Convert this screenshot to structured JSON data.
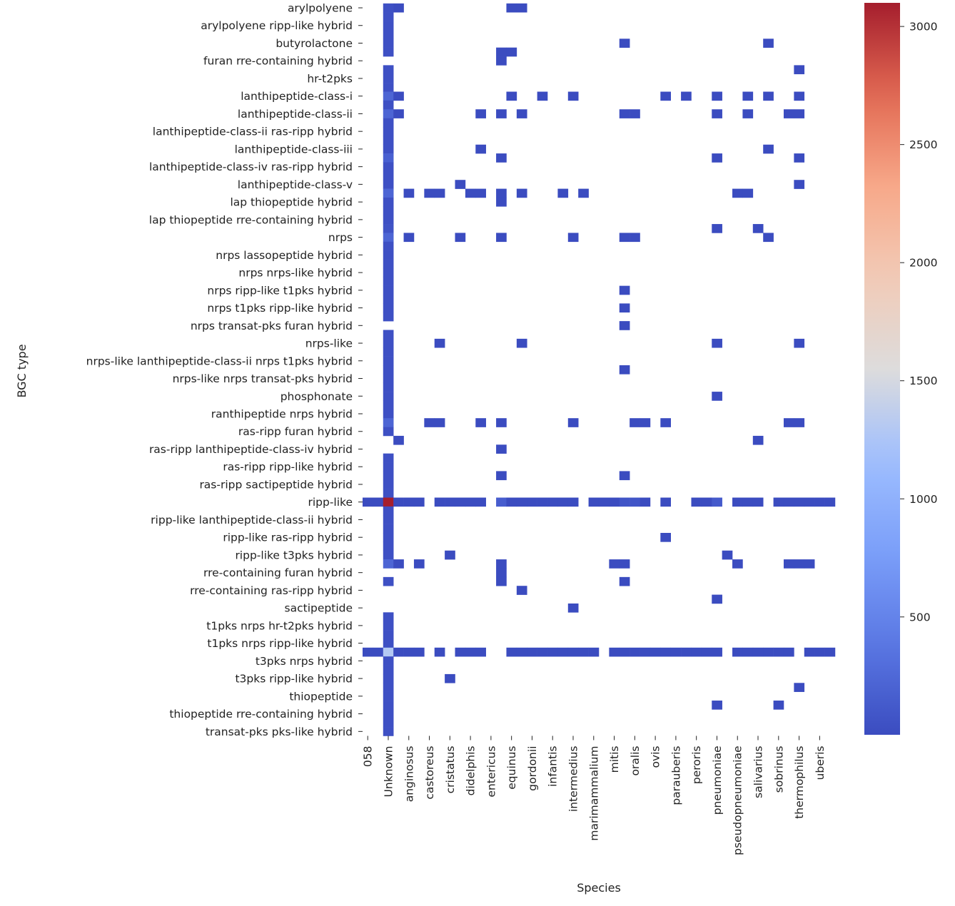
{
  "chart_data": {
    "type": "heatmap",
    "xlabel": "Species",
    "ylabel": "BGC type",
    "colormap": "coolwarm",
    "color_range": [
      1,
      3100
    ],
    "colorbar_ticks": [
      500,
      1000,
      1500,
      2000,
      2500,
      3000
    ],
    "empty_cell_color": "#ffffff",
    "row_labels": [
      "arylpolyene",
      "",
      "arylpolyene ripp-like hybrid",
      "",
      "butyrolactone",
      "",
      "furan rre-containing hybrid",
      "",
      "hr-t2pks",
      "",
      "lanthipeptide-class-i",
      "",
      "lanthipeptide-class-ii",
      "",
      "lanthipeptide-class-ii ras-ripp hybrid",
      "",
      "lanthipeptide-class-iii",
      "",
      "lanthipeptide-class-iv ras-ripp hybrid",
      "",
      "lanthipeptide-class-v",
      "",
      "lap thiopeptide hybrid",
      "",
      "lap thiopeptide rre-containing hybrid",
      "",
      "nrps",
      "",
      "nrps lassopeptide hybrid",
      "",
      "nrps nrps-like hybrid",
      "",
      "nrps ripp-like t1pks hybrid",
      "",
      "nrps t1pks ripp-like hybrid",
      "",
      "nrps transat-pks furan hybrid",
      "",
      "nrps-like",
      "",
      "nrps-like lanthipeptide-class-ii nrps t1pks hybrid",
      "",
      "nrps-like nrps transat-pks hybrid",
      "",
      "phosphonate",
      "",
      "ranthipeptide nrps hybrid",
      "",
      "ras-ripp furan hybrid",
      "",
      "ras-ripp lanthipeptide-class-iv hybrid",
      "",
      "ras-ripp ripp-like hybrid",
      "",
      "ras-ripp sactipeptide hybrid",
      "",
      "ripp-like",
      "",
      "ripp-like lanthipeptide-class-ii hybrid",
      "",
      "ripp-like ras-ripp hybrid",
      "",
      "ripp-like t3pks hybrid",
      "",
      "rre-containing furan hybrid",
      "",
      "rre-containing ras-ripp hybrid",
      "",
      "sactipeptide",
      "",
      "t1pks nrps hr-t2pks hybrid",
      "",
      "t1pks nrps ripp-like hybrid",
      "",
      "t3pks nrps hybrid",
      "",
      "t3pks ripp-like hybrid",
      "",
      "thiopeptide",
      "",
      "thiopeptide rre-containing hybrid",
      "",
      "transat-pks pks-like hybrid"
    ],
    "col_labels": [
      "058",
      "",
      "Unknown",
      "",
      "anginosus",
      "",
      "castoreus",
      "",
      "cristatus",
      "",
      "didelphis",
      "",
      "entericus",
      "",
      "equinus",
      "",
      "gordonii",
      "",
      "infantis",
      "",
      "intermedius",
      "",
      "marimammalium",
      "",
      "mitis",
      "",
      "oralis",
      "",
      "ovis",
      "",
      "parauberis",
      "",
      "peroris",
      "",
      "pneumoniae",
      "",
      "pseudopneumoniae",
      "",
      "salivarius",
      "",
      "sobrinus",
      "",
      "thermophilus",
      "",
      "uberis",
      ""
    ],
    "cells": [
      [
        0,
        2,
        40
      ],
      [
        0,
        3,
        5
      ],
      [
        0,
        14,
        5
      ],
      [
        0,
        15,
        5
      ],
      [
        1,
        2,
        40
      ],
      [
        2,
        2,
        40
      ],
      [
        3,
        2,
        40
      ],
      [
        4,
        2,
        40
      ],
      [
        4,
        25,
        5
      ],
      [
        4,
        39,
        5
      ],
      [
        5,
        2,
        40
      ],
      [
        5,
        13,
        5
      ],
      [
        5,
        14,
        5
      ],
      [
        6,
        13,
        5
      ],
      [
        7,
        2,
        40
      ],
      [
        7,
        42,
        5
      ],
      [
        8,
        2,
        40
      ],
      [
        9,
        2,
        40
      ],
      [
        10,
        2,
        220
      ],
      [
        10,
        3,
        5
      ],
      [
        10,
        14,
        5
      ],
      [
        10,
        17,
        5
      ],
      [
        10,
        20,
        5
      ],
      [
        10,
        29,
        5
      ],
      [
        10,
        31,
        5
      ],
      [
        10,
        34,
        5
      ],
      [
        10,
        37,
        5
      ],
      [
        10,
        39,
        5
      ],
      [
        10,
        42,
        5
      ],
      [
        11,
        2,
        40
      ],
      [
        12,
        2,
        220
      ],
      [
        12,
        3,
        5
      ],
      [
        12,
        11,
        5
      ],
      [
        12,
        13,
        5
      ],
      [
        12,
        15,
        5
      ],
      [
        12,
        25,
        5
      ],
      [
        12,
        26,
        5
      ],
      [
        12,
        34,
        5
      ],
      [
        12,
        37,
        5
      ],
      [
        12,
        41,
        5
      ],
      [
        12,
        42,
        5
      ],
      [
        13,
        2,
        40
      ],
      [
        14,
        2,
        40
      ],
      [
        15,
        2,
        40
      ],
      [
        16,
        2,
        40
      ],
      [
        16,
        11,
        5
      ],
      [
        16,
        39,
        5
      ],
      [
        17,
        2,
        180
      ],
      [
        17,
        13,
        5
      ],
      [
        17,
        34,
        5
      ],
      [
        17,
        42,
        5
      ],
      [
        18,
        2,
        40
      ],
      [
        19,
        2,
        40
      ],
      [
        20,
        2,
        40
      ],
      [
        20,
        9,
        5
      ],
      [
        20,
        42,
        5
      ],
      [
        21,
        2,
        220
      ],
      [
        21,
        4,
        5
      ],
      [
        21,
        6,
        5
      ],
      [
        21,
        7,
        5
      ],
      [
        21,
        10,
        5
      ],
      [
        21,
        11,
        5
      ],
      [
        21,
        13,
        5
      ],
      [
        21,
        15,
        5
      ],
      [
        21,
        19,
        5
      ],
      [
        21,
        21,
        5
      ],
      [
        21,
        36,
        5
      ],
      [
        21,
        37,
        5
      ],
      [
        22,
        2,
        40
      ],
      [
        22,
        13,
        5
      ],
      [
        23,
        2,
        40
      ],
      [
        24,
        2,
        40
      ],
      [
        25,
        2,
        60
      ],
      [
        25,
        34,
        5
      ],
      [
        25,
        38,
        5
      ],
      [
        26,
        2,
        220
      ],
      [
        26,
        4,
        5
      ],
      [
        26,
        9,
        5
      ],
      [
        26,
        13,
        5
      ],
      [
        26,
        20,
        5
      ],
      [
        26,
        25,
        5
      ],
      [
        26,
        26,
        5
      ],
      [
        26,
        39,
        5
      ],
      [
        27,
        2,
        40
      ],
      [
        28,
        2,
        40
      ],
      [
        29,
        2,
        40
      ],
      [
        30,
        2,
        40
      ],
      [
        31,
        2,
        40
      ],
      [
        32,
        2,
        40
      ],
      [
        32,
        25,
        5
      ],
      [
        33,
        2,
        40
      ],
      [
        34,
        2,
        40
      ],
      [
        34,
        25,
        5
      ],
      [
        35,
        2,
        40
      ],
      [
        36,
        25,
        5
      ],
      [
        37,
        2,
        40
      ],
      [
        38,
        2,
        40
      ],
      [
        38,
        7,
        5
      ],
      [
        38,
        15,
        5
      ],
      [
        38,
        34,
        5
      ],
      [
        38,
        42,
        5
      ],
      [
        39,
        2,
        40
      ],
      [
        40,
        2,
        40
      ],
      [
        41,
        2,
        40
      ],
      [
        41,
        25,
        5
      ],
      [
        42,
        2,
        40
      ],
      [
        43,
        2,
        40
      ],
      [
        44,
        2,
        40
      ],
      [
        44,
        34,
        5
      ],
      [
        45,
        2,
        40
      ],
      [
        46,
        2,
        40
      ],
      [
        47,
        2,
        220
      ],
      [
        47,
        6,
        5
      ],
      [
        47,
        7,
        5
      ],
      [
        47,
        11,
        5
      ],
      [
        47,
        13,
        5
      ],
      [
        47,
        20,
        5
      ],
      [
        47,
        26,
        5
      ],
      [
        47,
        27,
        5
      ],
      [
        47,
        29,
        5
      ],
      [
        47,
        41,
        5
      ],
      [
        47,
        42,
        5
      ],
      [
        48,
        2,
        40
      ],
      [
        49,
        3,
        5
      ],
      [
        49,
        38,
        5
      ],
      [
        50,
        13,
        5
      ],
      [
        51,
        2,
        40
      ],
      [
        52,
        2,
        40
      ],
      [
        53,
        2,
        40
      ],
      [
        53,
        13,
        5
      ],
      [
        53,
        25,
        5
      ],
      [
        54,
        2,
        40
      ],
      [
        55,
        2,
        40
      ],
      [
        56,
        0,
        5
      ],
      [
        56,
        1,
        5
      ],
      [
        56,
        2,
        3100
      ],
      [
        56,
        3,
        5
      ],
      [
        56,
        4,
        5
      ],
      [
        56,
        5,
        5
      ],
      [
        56,
        7,
        5
      ],
      [
        56,
        8,
        5
      ],
      [
        56,
        9,
        5
      ],
      [
        56,
        10,
        5
      ],
      [
        56,
        11,
        5
      ],
      [
        56,
        13,
        150
      ],
      [
        56,
        14,
        5
      ],
      [
        56,
        15,
        5
      ],
      [
        56,
        16,
        5
      ],
      [
        56,
        17,
        5
      ],
      [
        56,
        18,
        5
      ],
      [
        56,
        19,
        5
      ],
      [
        56,
        20,
        5
      ],
      [
        56,
        22,
        5
      ],
      [
        56,
        23,
        5
      ],
      [
        56,
        24,
        5
      ],
      [
        56,
        25,
        80
      ],
      [
        56,
        26,
        80
      ],
      [
        56,
        27,
        5
      ],
      [
        56,
        29,
        5
      ],
      [
        56,
        32,
        5
      ],
      [
        56,
        33,
        5
      ],
      [
        56,
        34,
        120
      ],
      [
        56,
        36,
        5
      ],
      [
        56,
        37,
        5
      ],
      [
        56,
        38,
        5
      ],
      [
        56,
        40,
        5
      ],
      [
        56,
        41,
        5
      ],
      [
        56,
        42,
        5
      ],
      [
        56,
        43,
        5
      ],
      [
        56,
        44,
        5
      ],
      [
        56,
        45,
        5
      ],
      [
        57,
        2,
        40
      ],
      [
        58,
        2,
        40
      ],
      [
        59,
        2,
        40
      ],
      [
        60,
        2,
        40
      ],
      [
        60,
        29,
        5
      ],
      [
        61,
        2,
        40
      ],
      [
        62,
        2,
        40
      ],
      [
        62,
        8,
        5
      ],
      [
        62,
        35,
        5
      ],
      [
        63,
        2,
        220
      ],
      [
        63,
        3,
        5
      ],
      [
        63,
        5,
        5
      ],
      [
        63,
        13,
        5
      ],
      [
        63,
        24,
        5
      ],
      [
        63,
        25,
        5
      ],
      [
        63,
        36,
        5
      ],
      [
        63,
        41,
        5
      ],
      [
        63,
        42,
        5
      ],
      [
        63,
        43,
        5
      ],
      [
        64,
        13,
        5
      ],
      [
        65,
        2,
        40
      ],
      [
        65,
        13,
        5
      ],
      [
        65,
        25,
        5
      ],
      [
        66,
        15,
        5
      ],
      [
        67,
        34,
        5
      ],
      [
        68,
        20,
        5
      ],
      [
        69,
        2,
        40
      ],
      [
        70,
        2,
        40
      ],
      [
        71,
        2,
        40
      ],
      [
        72,
        2,
        40
      ],
      [
        73,
        0,
        5
      ],
      [
        73,
        1,
        5
      ],
      [
        73,
        2,
        1300
      ],
      [
        73,
        3,
        5
      ],
      [
        73,
        4,
        5
      ],
      [
        73,
        5,
        5
      ],
      [
        73,
        7,
        5
      ],
      [
        73,
        9,
        5
      ],
      [
        73,
        10,
        5
      ],
      [
        73,
        11,
        5
      ],
      [
        73,
        14,
        5
      ],
      [
        73,
        15,
        5
      ],
      [
        73,
        16,
        5
      ],
      [
        73,
        17,
        5
      ],
      [
        73,
        18,
        5
      ],
      [
        73,
        19,
        5
      ],
      [
        73,
        20,
        5
      ],
      [
        73,
        21,
        5
      ],
      [
        73,
        22,
        5
      ],
      [
        73,
        24,
        5
      ],
      [
        73,
        25,
        5
      ],
      [
        73,
        26,
        5
      ],
      [
        73,
        27,
        5
      ],
      [
        73,
        28,
        5
      ],
      [
        73,
        29,
        5
      ],
      [
        73,
        30,
        5
      ],
      [
        73,
        31,
        5
      ],
      [
        73,
        32,
        5
      ],
      [
        73,
        33,
        5
      ],
      [
        73,
        34,
        5
      ],
      [
        73,
        36,
        5
      ],
      [
        73,
        37,
        5
      ],
      [
        73,
        38,
        5
      ],
      [
        73,
        39,
        5
      ],
      [
        73,
        40,
        5
      ],
      [
        73,
        41,
        5
      ],
      [
        73,
        43,
        5
      ],
      [
        73,
        44,
        5
      ],
      [
        73,
        45,
        5
      ],
      [
        74,
        2,
        40
      ],
      [
        75,
        2,
        40
      ],
      [
        76,
        2,
        40
      ],
      [
        76,
        8,
        5
      ],
      [
        77,
        2,
        40
      ],
      [
        77,
        42,
        5
      ],
      [
        78,
        2,
        40
      ],
      [
        79,
        2,
        40
      ],
      [
        79,
        34,
        5
      ],
      [
        79,
        40,
        5
      ],
      [
        80,
        2,
        40
      ],
      [
        81,
        2,
        40
      ],
      [
        82,
        2,
        40
      ]
    ]
  }
}
